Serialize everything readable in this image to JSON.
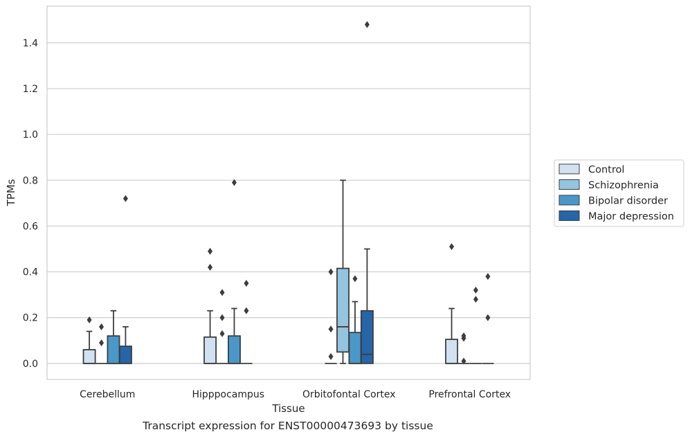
{
  "caption": "Transcript expression for ENST00000473693 by tissue",
  "chart_data": {
    "type": "box",
    "xlabel": "Tissue",
    "ylabel": "TPMs",
    "ylim": [
      -0.07,
      1.56
    ],
    "yticks": [
      0.0,
      0.2,
      0.4,
      0.6,
      0.8,
      1.0,
      1.2,
      1.4
    ],
    "ytick_labels": [
      "0.0",
      "0.2",
      "0.4",
      "0.6",
      "0.8",
      "1.0",
      "1.2",
      "1.4"
    ],
    "grid": "horizontal",
    "legend_position": "right",
    "categories": [
      "Cerebellum",
      "Hipppocampus",
      "Orbitofontal Cortex",
      "Prefrontal Cortex"
    ],
    "series": [
      {
        "name": "Control",
        "color": "#d0e1f2",
        "boxes": [
          {
            "q1": 0.0,
            "median": 0.0,
            "q3": 0.06,
            "whisker_low": 0.0,
            "whisker_high": 0.14,
            "outliers": [
              0.19
            ]
          },
          {
            "q1": 0.0,
            "median": 0.0,
            "q3": 0.115,
            "whisker_low": 0.0,
            "whisker_high": 0.23,
            "outliers": [
              0.42,
              0.49
            ]
          },
          {
            "q1": 0.0,
            "median": 0.0,
            "q3": 0.0,
            "whisker_low": 0.0,
            "whisker_high": 0.0,
            "outliers": [
              0.03,
              0.15,
              0.4
            ]
          },
          {
            "q1": 0.0,
            "median": 0.0,
            "q3": 0.105,
            "whisker_low": 0.0,
            "whisker_high": 0.24,
            "outliers": [
              0.51
            ]
          }
        ]
      },
      {
        "name": "Schizophrenia",
        "color": "#94c4df",
        "boxes": [
          {
            "q1": 0.0,
            "median": 0.0,
            "q3": 0.0,
            "whisker_low": 0.0,
            "whisker_high": 0.0,
            "outliers": [
              0.09,
              0.16
            ]
          },
          {
            "q1": 0.0,
            "median": 0.0,
            "q3": 0.0,
            "whisker_low": 0.0,
            "whisker_high": 0.0,
            "outliers": [
              0.13,
              0.2,
              0.31
            ]
          },
          {
            "q1": 0.05,
            "median": 0.16,
            "q3": 0.415,
            "whisker_low": 0.0,
            "whisker_high": 0.8,
            "outliers": []
          },
          {
            "q1": 0.0,
            "median": 0.0,
            "q3": 0.0,
            "whisker_low": 0.0,
            "whisker_high": 0.0,
            "outliers": [
              0.01,
              0.11,
              0.12
            ]
          }
        ]
      },
      {
        "name": "Bipolar disorder",
        "color": "#4a98c9",
        "boxes": [
          {
            "q1": 0.0,
            "median": 0.0,
            "q3": 0.12,
            "whisker_low": 0.0,
            "whisker_high": 0.23,
            "outliers": []
          },
          {
            "q1": 0.0,
            "median": 0.0,
            "q3": 0.12,
            "whisker_low": 0.0,
            "whisker_high": 0.24,
            "outliers": [
              0.79
            ]
          },
          {
            "q1": 0.0,
            "median": 0.0,
            "q3": 0.135,
            "whisker_low": 0.0,
            "whisker_high": 0.27,
            "outliers": [
              0.37
            ]
          },
          {
            "q1": 0.0,
            "median": 0.0,
            "q3": 0.0,
            "whisker_low": 0.0,
            "whisker_high": 0.0,
            "outliers": [
              0.28,
              0.32
            ]
          }
        ]
      },
      {
        "name": "Major depression",
        "color": "#2565a8",
        "boxes": [
          {
            "q1": 0.0,
            "median": 0.0,
            "q3": 0.075,
            "whisker_low": 0.0,
            "whisker_high": 0.16,
            "outliers": [
              0.72
            ]
          },
          {
            "q1": 0.0,
            "median": 0.0,
            "q3": 0.0,
            "whisker_low": 0.0,
            "whisker_high": 0.0,
            "outliers": [
              0.23,
              0.35
            ]
          },
          {
            "q1": 0.0,
            "median": 0.04,
            "q3": 0.23,
            "whisker_low": 0.0,
            "whisker_high": 0.5,
            "outliers": [
              1.48
            ]
          },
          {
            "q1": 0.0,
            "median": 0.0,
            "q3": 0.0,
            "whisker_low": 0.0,
            "whisker_high": 0.0,
            "outliers": [
              0.2,
              0.38
            ]
          }
        ]
      }
    ]
  }
}
